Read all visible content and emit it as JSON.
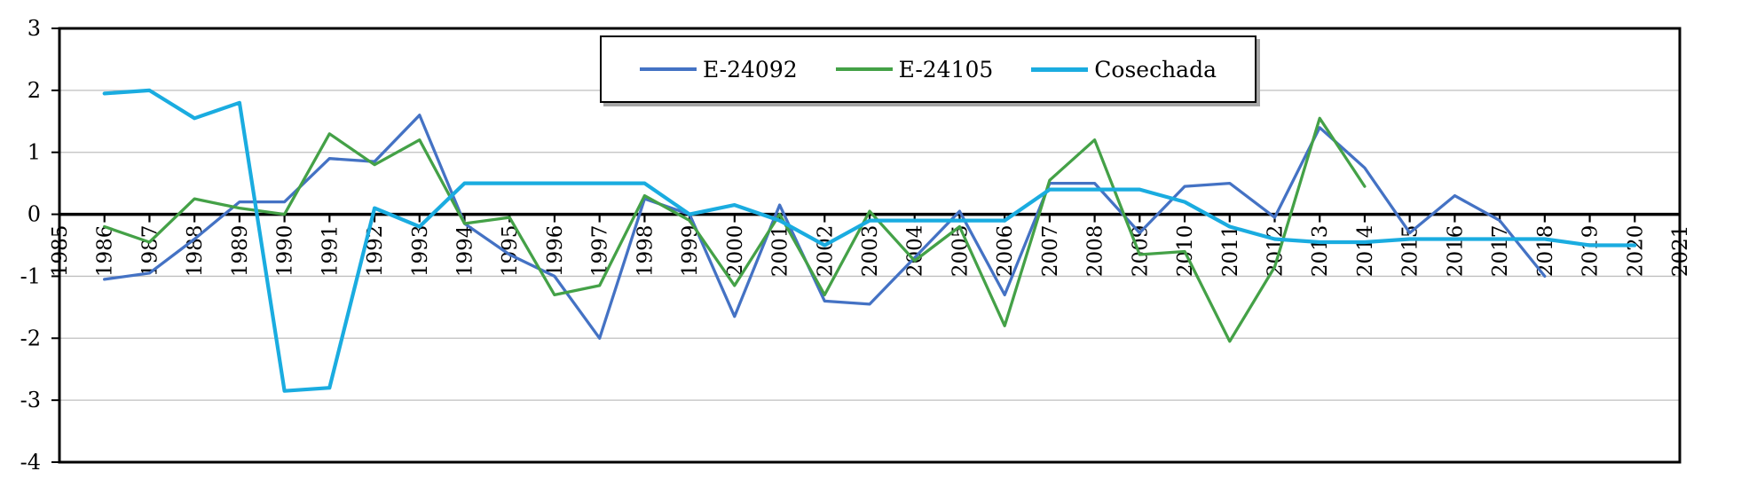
{
  "chart_data": {
    "type": "line",
    "title": "",
    "x_range": [
      1985,
      2021
    ],
    "y_range": [
      -4,
      3
    ],
    "x_ticks": [
      1985,
      1986,
      1987,
      1988,
      1989,
      1990,
      1991,
      1992,
      1993,
      1994,
      1995,
      1996,
      1997,
      1998,
      1999,
      2000,
      2001,
      2002,
      2003,
      2004,
      2005,
      2006,
      2007,
      2008,
      2009,
      2010,
      2011,
      2012,
      2013,
      2014,
      2015,
      2016,
      2017,
      2018,
      2019,
      2020,
      2021
    ],
    "y_ticks": [
      3,
      2,
      1,
      0,
      -1,
      -2,
      -3,
      -4
    ],
    "gridline_values": [
      2,
      1,
      -1,
      -2,
      -3
    ],
    "grid": true,
    "legend_position": "top-center",
    "colors": {
      "background": "#FFFFFF",
      "grid": "#BFBFBF",
      "axis": "#000000",
      "border": "#000000"
    },
    "series": [
      {
        "name": "E-24092",
        "color": "#4472C4",
        "points": [
          [
            1986,
            -1.05
          ],
          [
            1987,
            -0.95
          ],
          [
            1988,
            -0.4
          ],
          [
            1989,
            0.2
          ],
          [
            1990,
            0.2
          ],
          [
            1991,
            0.9
          ],
          [
            1992,
            0.85
          ],
          [
            1993,
            1.6
          ],
          [
            1994,
            -0.15
          ],
          [
            1995,
            -0.65
          ],
          [
            1996,
            -1.0
          ],
          [
            1997,
            -2.0
          ],
          [
            1998,
            0.25
          ],
          [
            1999,
            0.0
          ],
          [
            2000,
            -1.65
          ],
          [
            2001,
            0.15
          ],
          [
            2002,
            -1.4
          ],
          [
            2003,
            -1.45
          ],
          [
            2004,
            -0.7
          ],
          [
            2005,
            0.05
          ],
          [
            2006,
            -1.3
          ],
          [
            2007,
            0.5
          ],
          [
            2008,
            0.5
          ],
          [
            2009,
            -0.3
          ],
          [
            2010,
            0.45
          ],
          [
            2011,
            0.5
          ],
          [
            2012,
            -0.05
          ],
          [
            2013,
            1.4
          ],
          [
            2014,
            0.75
          ],
          [
            2015,
            -0.3
          ],
          [
            2016,
            0.3
          ],
          [
            2017,
            -0.1
          ],
          [
            2018,
            -1.0
          ]
        ]
      },
      {
        "name": "E-24105",
        "color": "#44A147",
        "points": [
          [
            1986,
            -0.2
          ],
          [
            1987,
            -0.45
          ],
          [
            1988,
            0.25
          ],
          [
            1989,
            0.1
          ],
          [
            1990,
            0.0
          ],
          [
            1991,
            1.3
          ],
          [
            1992,
            0.8
          ],
          [
            1993,
            1.2
          ],
          [
            1994,
            -0.15
          ],
          [
            1995,
            -0.05
          ],
          [
            1996,
            -1.3
          ],
          [
            1997,
            -1.15
          ],
          [
            1998,
            0.3
          ],
          [
            1999,
            -0.1
          ],
          [
            2000,
            -1.15
          ],
          [
            2001,
            0.0
          ],
          [
            2002,
            -1.3
          ],
          [
            2003,
            0.05
          ],
          [
            2004,
            -0.75
          ],
          [
            2005,
            -0.2
          ],
          [
            2006,
            -1.8
          ],
          [
            2007,
            0.55
          ],
          [
            2008,
            1.2
          ],
          [
            2009,
            -0.65
          ],
          [
            2010,
            -0.6
          ],
          [
            2011,
            -2.05
          ],
          [
            2012,
            -0.85
          ],
          [
            2013,
            1.55
          ],
          [
            2014,
            0.45
          ]
        ]
      },
      {
        "name": "Cosechada",
        "color": "#1AACE0",
        "points": [
          [
            1986,
            1.95
          ],
          [
            1987,
            2.0
          ],
          [
            1988,
            1.55
          ],
          [
            1989,
            1.8
          ],
          [
            1990,
            -2.85
          ],
          [
            1991,
            -2.8
          ],
          [
            1992,
            0.1
          ],
          [
            1993,
            -0.2
          ],
          [
            1994,
            0.5
          ],
          [
            1995,
            0.5
          ],
          [
            1996,
            0.5
          ],
          [
            1997,
            0.5
          ],
          [
            1998,
            0.5
          ],
          [
            1999,
            0.0
          ],
          [
            2000,
            0.15
          ],
          [
            2001,
            -0.1
          ],
          [
            2002,
            -0.5
          ],
          [
            2003,
            -0.1
          ],
          [
            2004,
            -0.1
          ],
          [
            2005,
            -0.1
          ],
          [
            2006,
            -0.1
          ],
          [
            2007,
            0.4
          ],
          [
            2008,
            0.4
          ],
          [
            2009,
            0.4
          ],
          [
            2010,
            0.2
          ],
          [
            2011,
            -0.2
          ],
          [
            2012,
            -0.4
          ],
          [
            2013,
            -0.45
          ],
          [
            2014,
            -0.45
          ],
          [
            2015,
            -0.4
          ],
          [
            2016,
            -0.4
          ],
          [
            2017,
            -0.4
          ],
          [
            2018,
            -0.4
          ],
          [
            2019,
            -0.5
          ],
          [
            2020,
            -0.5
          ]
        ]
      }
    ]
  },
  "legend": {
    "items": [
      {
        "label": "E-24092"
      },
      {
        "label": "E-24105"
      },
      {
        "label": "Cosechada"
      }
    ]
  }
}
